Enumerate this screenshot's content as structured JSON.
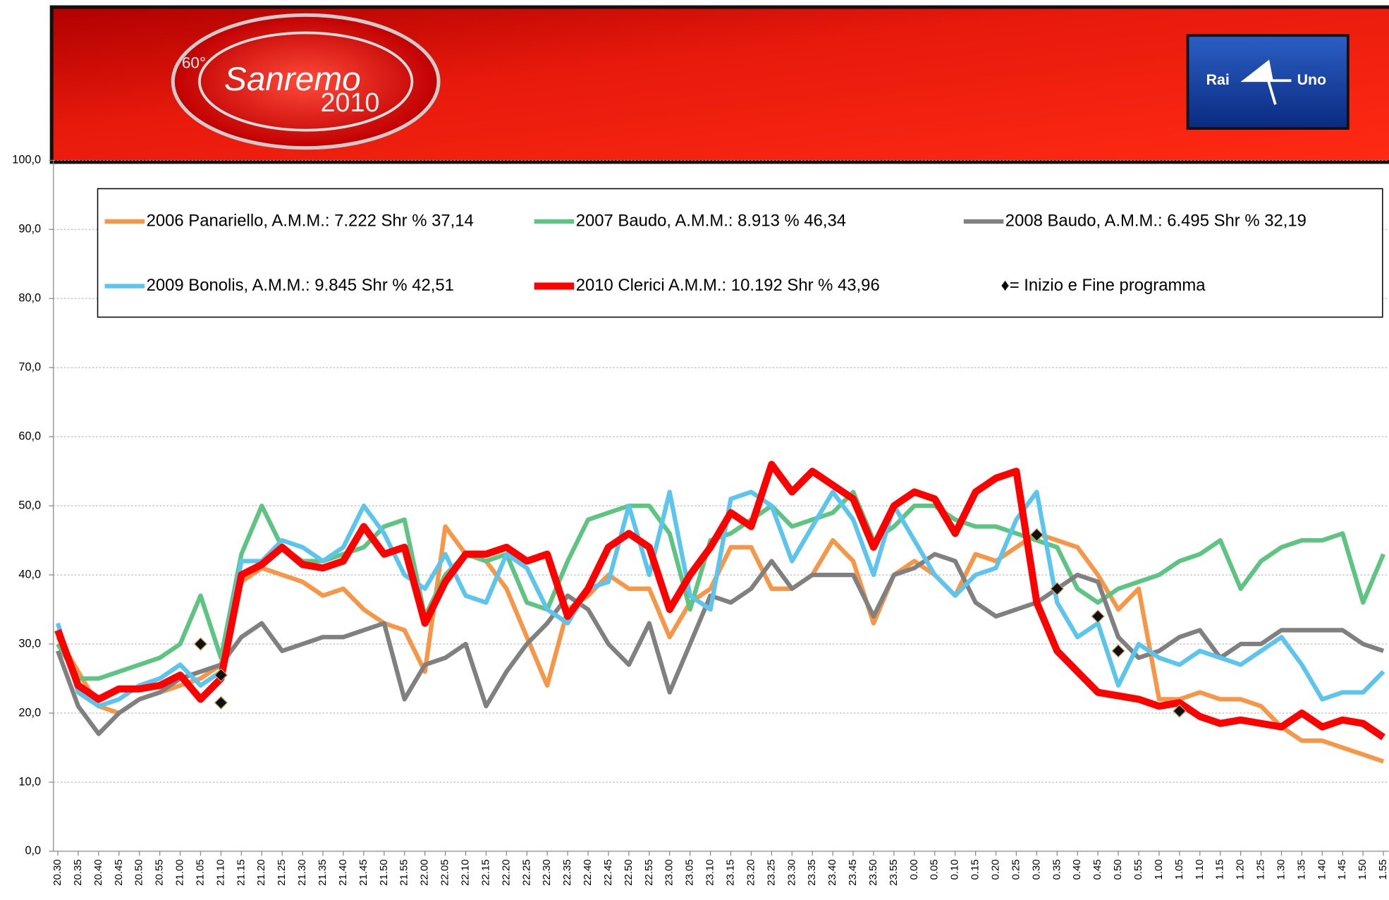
{
  "chart_data": {
    "type": "line",
    "header": {
      "logo_prefix": "60°",
      "logo": "Sanremo",
      "logo_year": "2010",
      "channel_left": "Rai",
      "channel_right": "Uno"
    },
    "categories": [
      "20.30",
      "20.35",
      "20.40",
      "20.45",
      "20.50",
      "20.55",
      "21.00",
      "21.05",
      "21.10",
      "21.15",
      "21.20",
      "21.25",
      "21.30",
      "21.35",
      "21.40",
      "21.45",
      "21.50",
      "21.55",
      "22.00",
      "22.05",
      "22.10",
      "22.15",
      "22.20",
      "22.25",
      "22.30",
      "22.35",
      "22.40",
      "22.45",
      "22.50",
      "22.55",
      "23.00",
      "23.05",
      "23.10",
      "23.15",
      "23.20",
      "23.25",
      "23.30",
      "23.35",
      "23.40",
      "23.45",
      "23.50",
      "23.55",
      "0.00",
      "0.05",
      "0.10",
      "0.15",
      "0.20",
      "0.25",
      "0.30",
      "0.35",
      "0.40",
      "0.45",
      "0.50",
      "0.55",
      "1.00",
      "1.05",
      "1.10",
      "1.15",
      "1.20",
      "1.25",
      "1.30",
      "1.35",
      "1.40",
      "1.45",
      "1.50",
      "1.55"
    ],
    "series": [
      {
        "name": "2006 Panariello, A.M.M.: 7.222 Shr % 37,14",
        "color": "#f79646",
        "width": 5,
        "values": [
          31,
          26,
          21,
          20,
          22,
          23,
          24,
          25,
          27,
          39,
          41,
          40,
          39,
          37,
          38,
          35,
          33,
          32,
          26,
          47,
          43,
          42,
          38,
          31,
          24,
          35,
          37,
          40,
          38,
          38,
          31,
          36,
          38,
          44,
          44,
          38,
          38,
          40,
          45,
          42,
          33,
          40,
          42,
          40,
          37,
          43,
          42,
          44,
          46,
          45,
          44,
          40,
          35,
          38,
          22,
          22,
          23,
          22,
          22,
          21,
          18,
          16,
          16,
          15,
          14,
          13
        ]
      },
      {
        "name": "2007 Baudo, A.M.M.: 8.913 % 46,34",
        "color": "#5ec482",
        "width": 5,
        "values": [
          30,
          25,
          25,
          26,
          27,
          28,
          30,
          37,
          28,
          43,
          50,
          44,
          42,
          42,
          43,
          44,
          47,
          48,
          34,
          40,
          43,
          42,
          43,
          36,
          35,
          42,
          48,
          49,
          50,
          50,
          46,
          35,
          45,
          46,
          48,
          50,
          47,
          48,
          49,
          52,
          45,
          47,
          50,
          50,
          48,
          47,
          47,
          46,
          45,
          44,
          38,
          36,
          38,
          39,
          40,
          42,
          43,
          45,
          38,
          42,
          44,
          45,
          45,
          46,
          36,
          43
        ]
      },
      {
        "name": "2008 Baudo, A.M.M.: 6.495 Shr % 32,19",
        "color": "#808080",
        "width": 5,
        "values": [
          29,
          21,
          17,
          20,
          22,
          23,
          25,
          26,
          27,
          31,
          33,
          29,
          30,
          31,
          31,
          32,
          33,
          22,
          27,
          28,
          30,
          21,
          26,
          30,
          33,
          37,
          35,
          30,
          27,
          33,
          23,
          30,
          37,
          36,
          38,
          42,
          38,
          40,
          40,
          40,
          34,
          40,
          41,
          43,
          42,
          36,
          34,
          35,
          36,
          38,
          40,
          39,
          31,
          28,
          29,
          31,
          32,
          28,
          30,
          30,
          32,
          32,
          32,
          32,
          30,
          29
        ]
      },
      {
        "name": "2009 Bonolis, A.M.M.: 9.845  Shr % 42,51",
        "color": "#5bc5ee",
        "width": 5,
        "values": [
          33,
          23,
          21,
          22,
          24,
          25,
          27,
          24,
          26,
          42,
          42,
          45,
          44,
          42,
          44,
          50,
          46,
          40,
          38,
          43,
          37,
          36,
          43,
          41,
          35,
          33,
          38,
          39,
          50,
          40,
          52,
          37,
          35,
          51,
          52,
          50,
          42,
          47,
          52,
          48,
          40,
          50,
          45,
          40,
          37,
          40,
          41,
          48,
          52,
          36,
          31,
          33,
          24,
          30,
          28,
          27,
          29,
          28,
          27,
          29,
          31,
          27,
          22,
          23,
          23,
          26
        ]
      },
      {
        "name": "2010 Clerici A.M.M.: 10.192 Shr % 43,96",
        "color": "#ff0000",
        "width": 8,
        "values": [
          32,
          24,
          22,
          23.5,
          23.5,
          24,
          25.5,
          22,
          25,
          40,
          41.5,
          44,
          41.5,
          41,
          42,
          47,
          43,
          44,
          33,
          39,
          43,
          43,
          44,
          42,
          43,
          34,
          38,
          44,
          46,
          44,
          35,
          40,
          44,
          49,
          47,
          56,
          52,
          55,
          53,
          51,
          44,
          50,
          52,
          51,
          46,
          52,
          54,
          55,
          36,
          29,
          26,
          23,
          22.5,
          22,
          21,
          21.5,
          19.5,
          18.5,
          19,
          18.5,
          18,
          20,
          18,
          19,
          18.5,
          16.5
        ]
      }
    ],
    "legend_note": "♦= Inizio e Fine programma",
    "markers": [
      {
        "x": "21.05",
        "value": 30
      },
      {
        "x": "21.10",
        "value": 25.5
      },
      {
        "x": "21.10",
        "value": 21.5
      },
      {
        "x": "0.30",
        "value": 45.8
      },
      {
        "x": "0.35",
        "value": 38
      },
      {
        "x": "0.45",
        "value": 34
      },
      {
        "x": "0.50",
        "value": 29
      },
      {
        "x": "1.05",
        "value": 20.3
      }
    ],
    "ylim": [
      0,
      100
    ],
    "yticks": [
      {
        "value": 0,
        "label": "0,0"
      },
      {
        "value": 10,
        "label": "10,0"
      },
      {
        "value": 20,
        "label": "20,0"
      },
      {
        "value": 30,
        "label": "30,0"
      },
      {
        "value": 40,
        "label": "40,0"
      },
      {
        "value": 50,
        "label": "50,0"
      },
      {
        "value": 60,
        "label": "60,0"
      },
      {
        "value": 70,
        "label": "70,0"
      },
      {
        "value": 80,
        "label": "80,0"
      },
      {
        "value": 90,
        "label": "90,0"
      },
      {
        "value": 100,
        "label": "100,0"
      }
    ],
    "grid": true
  }
}
